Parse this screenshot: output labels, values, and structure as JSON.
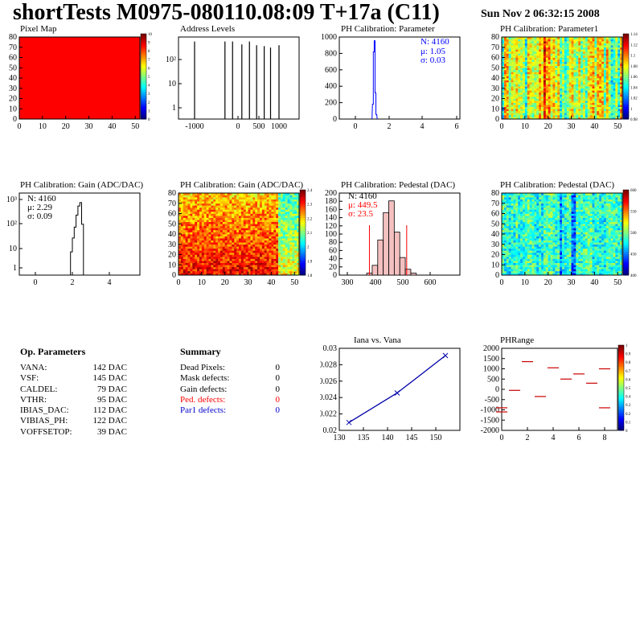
{
  "title": "shortTests M0975-080110.08:09 T+17a (C11)",
  "date": "Sun Nov  2 06:32:15 2008",
  "colors": {
    "ped": "#ff0000",
    "par1": "#0000cc",
    "blue_stat": "#0000ff",
    "red_stat": "#ff0000"
  },
  "panels": {
    "pixel_map": {
      "title": "Pixel Map"
    },
    "address_levels": {
      "title": "Address Levels"
    },
    "ph_param": {
      "title": "PH Calibration: Parameter",
      "stats": [
        "N: 4160",
        "μ: 1.05",
        "σ: 0.03"
      ]
    },
    "ph_param1": {
      "title": "PH Calibration: Parameter1"
    },
    "gain_hist": {
      "title": "PH Calibration: Gain (ADC/DAC)",
      "stats": [
        "N: 4160",
        "μ: 2.29",
        "σ: 0.09"
      ]
    },
    "gain_map": {
      "title": "PH Calibration: Gain (ADC/DAC)"
    },
    "ped_hist": {
      "title": "PH Calibration: Pedestal (DAC)",
      "stats": [
        "N: 4160",
        "μ: 449.5",
        "σ: 23.5"
      ]
    },
    "ped_map": {
      "title": "PH Calibration: Pedestal (DAC)"
    },
    "iana": {
      "title": "Iana vs. Vana"
    },
    "phrange": {
      "title": "PHRange"
    }
  },
  "op_params": {
    "header": "Op. Parameters",
    "rows": [
      {
        "k": "VANA:",
        "v": "142 DAC"
      },
      {
        "k": "VSF:",
        "v": "145 DAC"
      },
      {
        "k": "CALDEL:",
        "v": "79 DAC"
      },
      {
        "k": "VTHR:",
        "v": "95 DAC"
      },
      {
        "k": "IBIAS_DAC:",
        "v": "112 DAC"
      },
      {
        "k": "VIBIAS_PH:",
        "v": "122 DAC"
      },
      {
        "k": "VOFFSETOP:",
        "v": "39 DAC"
      }
    ]
  },
  "summary": {
    "header": "Summary",
    "rows": [
      {
        "k": "Dead Pixels:",
        "v": "0"
      },
      {
        "k": "Mask defects:",
        "v": "0"
      },
      {
        "k": "Gain defects:",
        "v": "0"
      },
      {
        "k": "Ped. defects:",
        "v": "0"
      },
      {
        "k": "Par1 defects:",
        "v": "0"
      }
    ]
  },
  "chart_data": [
    {
      "type": "heatmap",
      "title": "Pixel Map",
      "xlim": [
        0,
        52
      ],
      "ylim": [
        0,
        80
      ],
      "xticks": [
        "0",
        "10",
        "20",
        "30",
        "40",
        "50"
      ],
      "yticks": [
        "0",
        "10",
        "20",
        "30",
        "40",
        "50",
        "60",
        "70",
        "80"
      ],
      "zticks": [
        "0",
        "1",
        "2",
        "3",
        "4",
        "5",
        "6",
        "7",
        "8",
        "9",
        "10"
      ],
      "uniform_value": 10
    },
    {
      "type": "line",
      "title": "Address Levels",
      "ylog": true,
      "xticks": [
        "-1000",
        "0",
        "500",
        "1000"
      ],
      "yticks": [
        "1",
        "10",
        "10²"
      ],
      "peaks_x": [
        -1000,
        -280,
        -100,
        120,
        300,
        470,
        650,
        800,
        1000
      ],
      "peaks_y": [
        400,
        400,
        400,
        320,
        400,
        300,
        280,
        250,
        300
      ]
    },
    {
      "type": "bar",
      "title": "PH Calibration: Parameter",
      "xlim": [
        -1,
        6
      ],
      "ylim": [
        0,
        1100
      ],
      "xticks": [
        "0",
        "2",
        "4",
        "6"
      ],
      "yticks": [
        "0",
        "200",
        "400",
        "600",
        "800",
        "1000"
      ],
      "x": [
        0.95,
        1.0,
        1.05,
        1.1,
        1.15
      ],
      "values": [
        200,
        900,
        1050,
        350,
        60
      ]
    },
    {
      "type": "heatmap",
      "title": "PH Calibration: Parameter1",
      "xlim": [
        0,
        52
      ],
      "ylim": [
        0,
        80
      ],
      "xticks": [
        "0",
        "10",
        "20",
        "30",
        "40",
        "50"
      ],
      "yticks": [
        "0",
        "10",
        "20",
        "30",
        "40",
        "50",
        "60",
        "70",
        "80"
      ],
      "zticks": [
        "0.98",
        "1",
        "1.02",
        "1.04",
        "1.06",
        "1.08",
        "1.1",
        "1.12",
        "1.14"
      ]
    },
    {
      "type": "line",
      "title": "PH Calibration: Gain (ADC/DAC)",
      "ylog": true,
      "xticks": [
        "0",
        "2",
        "4"
      ],
      "yticks": [
        "1",
        "10",
        "10²",
        "10³"
      ],
      "x": [
        1.9,
        2.0,
        2.1,
        2.2,
        2.3,
        2.4,
        2.5
      ],
      "values": [
        5,
        20,
        60,
        200,
        500,
        700,
        80
      ]
    },
    {
      "type": "heatmap",
      "title": "PH Calibration: Gain (ADC/DAC)",
      "xlim": [
        0,
        52
      ],
      "ylim": [
        0,
        80
      ],
      "xticks": [
        "0",
        "10",
        "20",
        "30",
        "40",
        "50"
      ],
      "yticks": [
        "0",
        "10",
        "20",
        "30",
        "40",
        "50",
        "60",
        "70",
        "80"
      ],
      "zticks": [
        "1.8",
        "1.9",
        "2",
        "2.1",
        "2.2",
        "2.3",
        "2.4"
      ]
    },
    {
      "type": "bar",
      "title": "PH Calibration: Pedestal (DAC)",
      "xlim": [
        270,
        670
      ],
      "ylim": [
        0,
        210
      ],
      "xticks": [
        "300",
        "400",
        "500",
        "600"
      ],
      "yticks": [
        "0",
        "20",
        "40",
        "60",
        "80",
        "100",
        "120",
        "140",
        "160",
        "180",
        "200"
      ],
      "x": [
        380,
        400,
        420,
        440,
        460,
        480,
        500,
        520,
        540
      ],
      "values": [
        5,
        25,
        90,
        160,
        190,
        110,
        45,
        15,
        5
      ],
      "cut_lines": [
        380,
        515
      ]
    },
    {
      "type": "heatmap",
      "title": "PH Calibration: Pedestal (DAC)",
      "xlim": [
        0,
        52
      ],
      "ylim": [
        0,
        80
      ],
      "xticks": [
        "0",
        "10",
        "20",
        "30",
        "40",
        "50"
      ],
      "yticks": [
        "0",
        "10",
        "20",
        "30",
        "40",
        "50",
        "60",
        "70",
        "80"
      ],
      "zticks": [
        "400",
        "450",
        "500",
        "550",
        "600"
      ]
    },
    {
      "type": "line",
      "title": "Iana vs. Vana",
      "xlim": [
        130,
        155
      ],
      "ylim": [
        0.019,
        0.0315
      ],
      "xticks": [
        "130",
        "135",
        "140",
        "145",
        "150"
      ],
      "yticks": [
        "0.02",
        "0.022",
        "0.024",
        "0.026",
        "0.028",
        "0.03"
      ],
      "x": [
        132,
        142,
        152
      ],
      "values": [
        0.0202,
        0.0247,
        0.0304
      ]
    },
    {
      "type": "scatter",
      "title": "PHRange",
      "xlim": [
        0,
        9
      ],
      "ylim": [
        -2000,
        2000
      ],
      "xticks": [
        "0",
        "2",
        "4",
        "6",
        "8"
      ],
      "yticks": [
        "-2000",
        "-1500",
        "-1000",
        "-500",
        "0",
        "500",
        "1000",
        "1500",
        "2000"
      ],
      "zticks": [
        "0",
        "0.1",
        "0.2",
        "0.3",
        "0.4",
        "0.5",
        "0.6",
        "0.7",
        "0.8",
        "0.9",
        "1"
      ],
      "x": [
        0,
        1,
        2,
        3,
        4,
        5,
        6,
        7,
        8
      ],
      "values": [
        -1100,
        -50,
        1350,
        -350,
        1050,
        500,
        750,
        300,
        1000
      ],
      "values2": [
        -900,
        null,
        null,
        null,
        null,
        null,
        null,
        null,
        -900
      ]
    }
  ]
}
